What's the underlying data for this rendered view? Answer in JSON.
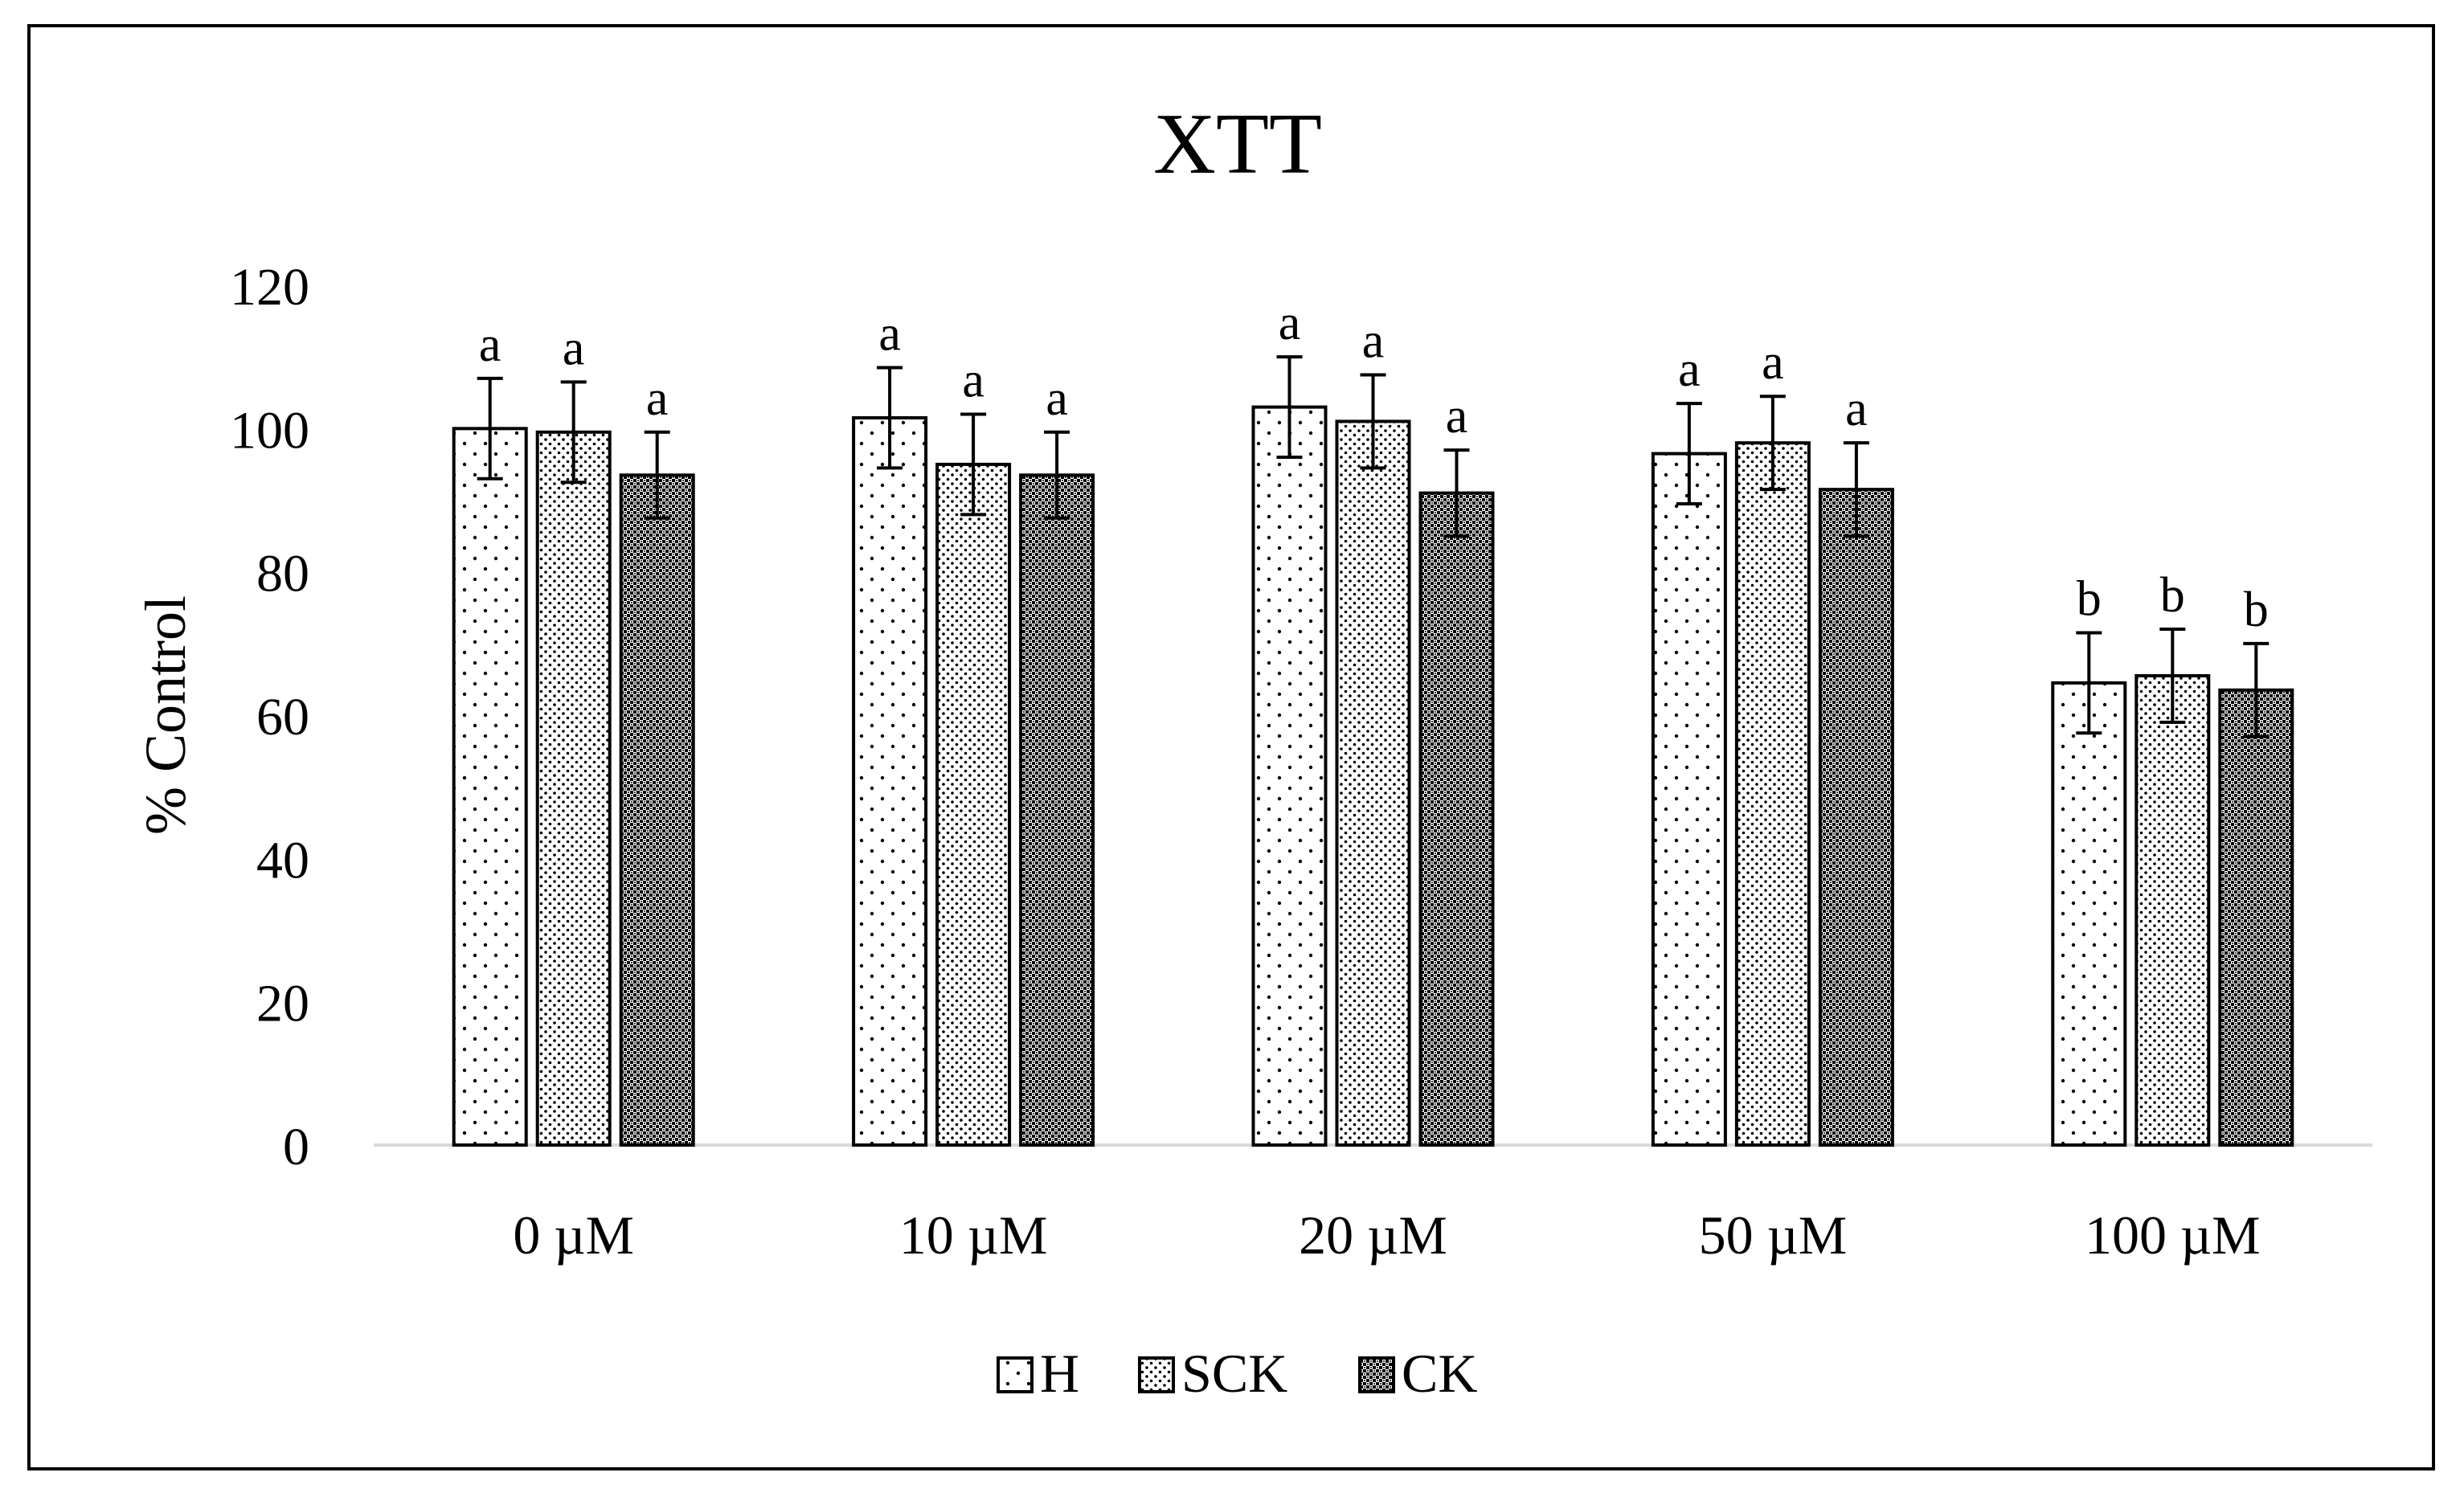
{
  "chart_data": {
    "type": "bar",
    "title": "XTT",
    "xlabel": "",
    "ylabel": "% Control",
    "ylim": [
      0,
      120
    ],
    "yticks": [
      0,
      20,
      40,
      60,
      80,
      100,
      120
    ],
    "grid": false,
    "legend_position": "bottom",
    "categories": [
      "0 µM",
      "10 µM",
      "20 µM",
      "50 µM",
      "100 µM"
    ],
    "series": [
      {
        "name": "H",
        "pattern": "sparse-dots",
        "values": [
          100,
          101.5,
          103,
          96.5,
          64.5
        ],
        "errors": [
          7,
          7,
          7,
          7,
          7
        ],
        "labels": [
          "a",
          "a",
          "a",
          "a",
          "b"
        ]
      },
      {
        "name": "SCK",
        "pattern": "medium-dots",
        "values": [
          99.5,
          95,
          101,
          98,
          65.5
        ],
        "errors": [
          7,
          7,
          6.5,
          6.5,
          6.5
        ],
        "labels": [
          "a",
          "a",
          "a",
          "a",
          "b"
        ]
      },
      {
        "name": "CK",
        "pattern": "dense-dots",
        "values": [
          93.5,
          93.5,
          91,
          91.5,
          63.5
        ],
        "errors": [
          6,
          6,
          6,
          6.5,
          6.5
        ],
        "labels": [
          "a",
          "a",
          "a",
          "a",
          "b"
        ]
      }
    ],
    "colors": {
      "axis": "#d9d9d9",
      "bar_outline": "#000000",
      "text": "#000000",
      "background": "#ffffff"
    }
  }
}
